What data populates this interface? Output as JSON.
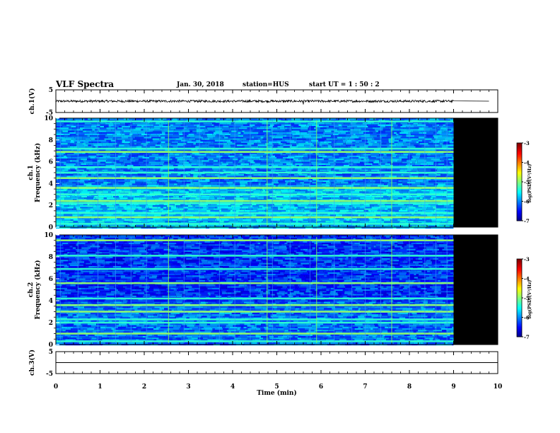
{
  "header": {
    "title": "VLF Spectra",
    "date": "Jan. 30, 2018",
    "station": "station=HUS",
    "start": "start  UT =   1 : 50 : 2"
  },
  "chart_data": [
    {
      "type": "line",
      "name": "waveform-ch1",
      "ylabel": "ch.1(V)",
      "ylim": [
        -5,
        5
      ],
      "y_ticks": [
        "5",
        "-5"
      ],
      "xlim": [
        0,
        10
      ],
      "series": [
        {
          "x": [
            0,
            9,
            9.8
          ],
          "values": [
            0,
            0,
            0
          ]
        }
      ]
    },
    {
      "type": "heatmap",
      "name": "spectrogram-ch1",
      "ylabel": "ch.1\nFrequency (kHz)",
      "ylim": [
        0,
        10
      ],
      "y_ticks": [
        "0",
        "2",
        "4",
        "6",
        "8",
        "10"
      ],
      "xlim": [
        0,
        10
      ],
      "data_xlim": [
        0,
        9
      ],
      "bands_khz": [
        0.3,
        0.9,
        1.3,
        2.2,
        2.4,
        3.0,
        3.6,
        4.5,
        5.0,
        5.5,
        6.9,
        7.2,
        9.7
      ],
      "colorbar": {
        "label": "log(PSD)(V²/Hz)",
        "range": [
          -7,
          -3
        ],
        "ticks": [
          "-3",
          "-4",
          "-5",
          "-6",
          "-7"
        ]
      }
    },
    {
      "type": "heatmap",
      "name": "spectrogram-ch2",
      "ylabel": "ch.2\nFrequency (kHz)",
      "ylim": [
        0,
        10
      ],
      "y_ticks": [
        "0",
        "2",
        "4",
        "6",
        "8",
        "10"
      ],
      "xlim": [
        0,
        10
      ],
      "data_xlim": [
        0,
        9
      ],
      "bands_khz": [
        0.3,
        1.0,
        2.0,
        2.3,
        3.0,
        3.6,
        4.2,
        5.6,
        6.9,
        8.1,
        9.5
      ],
      "colorbar": {
        "label": "log(PSD)(V²/Hz)",
        "range": [
          -7,
          -3
        ],
        "ticks": [
          "-3",
          "-4",
          "-5",
          "-6",
          "-7"
        ]
      }
    },
    {
      "type": "line",
      "name": "waveform-ch3",
      "ylabel": "ch.3(V)",
      "ylim": [
        -5,
        5
      ],
      "y_ticks": [
        "5",
        "-5"
      ],
      "xlim": [
        0,
        10
      ],
      "series": [
        {
          "x": [
            0,
            10
          ],
          "values": [
            0,
            0
          ]
        }
      ]
    }
  ],
  "x_axis": {
    "label": "Time (min)",
    "ticks": [
      "0",
      "1",
      "2",
      "3",
      "4",
      "5",
      "6",
      "7",
      "8",
      "9",
      "10"
    ]
  }
}
